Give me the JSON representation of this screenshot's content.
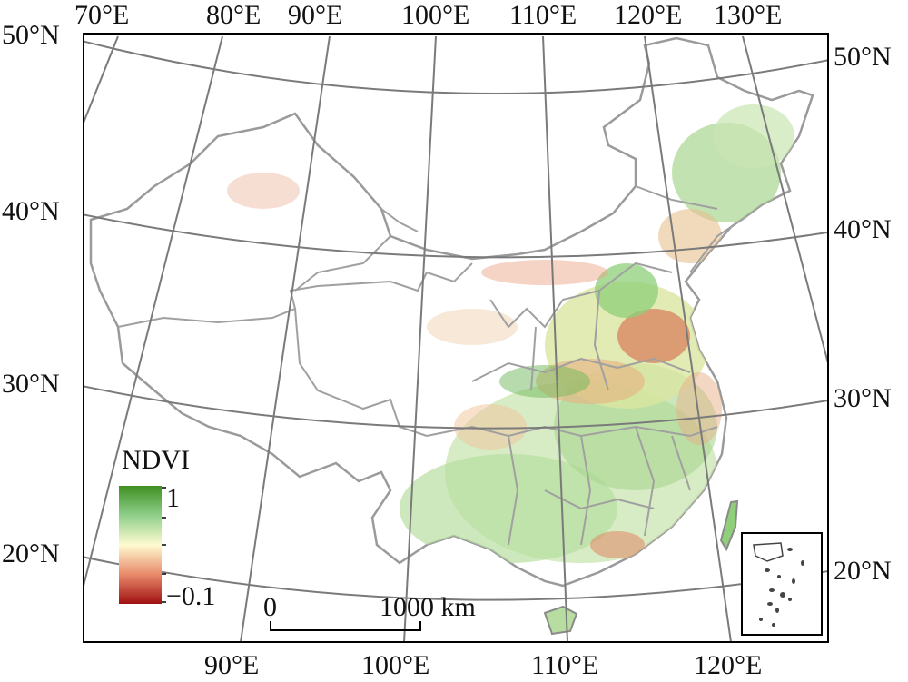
{
  "map": {
    "colors": {
      "frame": "#000000",
      "graticule": "#7a7a7a",
      "boundary": "#9a9a9a",
      "background": "#ffffff",
      "ndvi_high": "#2e8b2e",
      "ndvi_mid": "#fffbd0",
      "ndvi_low": "#a01010"
    },
    "longitude_labels_top": [
      "70°E",
      "80°E",
      "90°E",
      "100°E",
      "110°E",
      "120°E",
      "130°E"
    ],
    "longitude_labels_bottom": [
      "90°E",
      "100°E",
      "110°E",
      "120°E"
    ],
    "latitude_labels_left": [
      "50°N",
      "40°N",
      "30°N",
      "20°N"
    ],
    "latitude_labels_right": [
      "50°N",
      "40°N",
      "30°N",
      "20°N"
    ]
  },
  "legend": {
    "title": "NDVI",
    "max_label": "1",
    "min_label": "−0.1",
    "range": [
      -0.1,
      1
    ]
  },
  "scale_bar": {
    "zero_label": "0",
    "max_label": "1000 km"
  }
}
